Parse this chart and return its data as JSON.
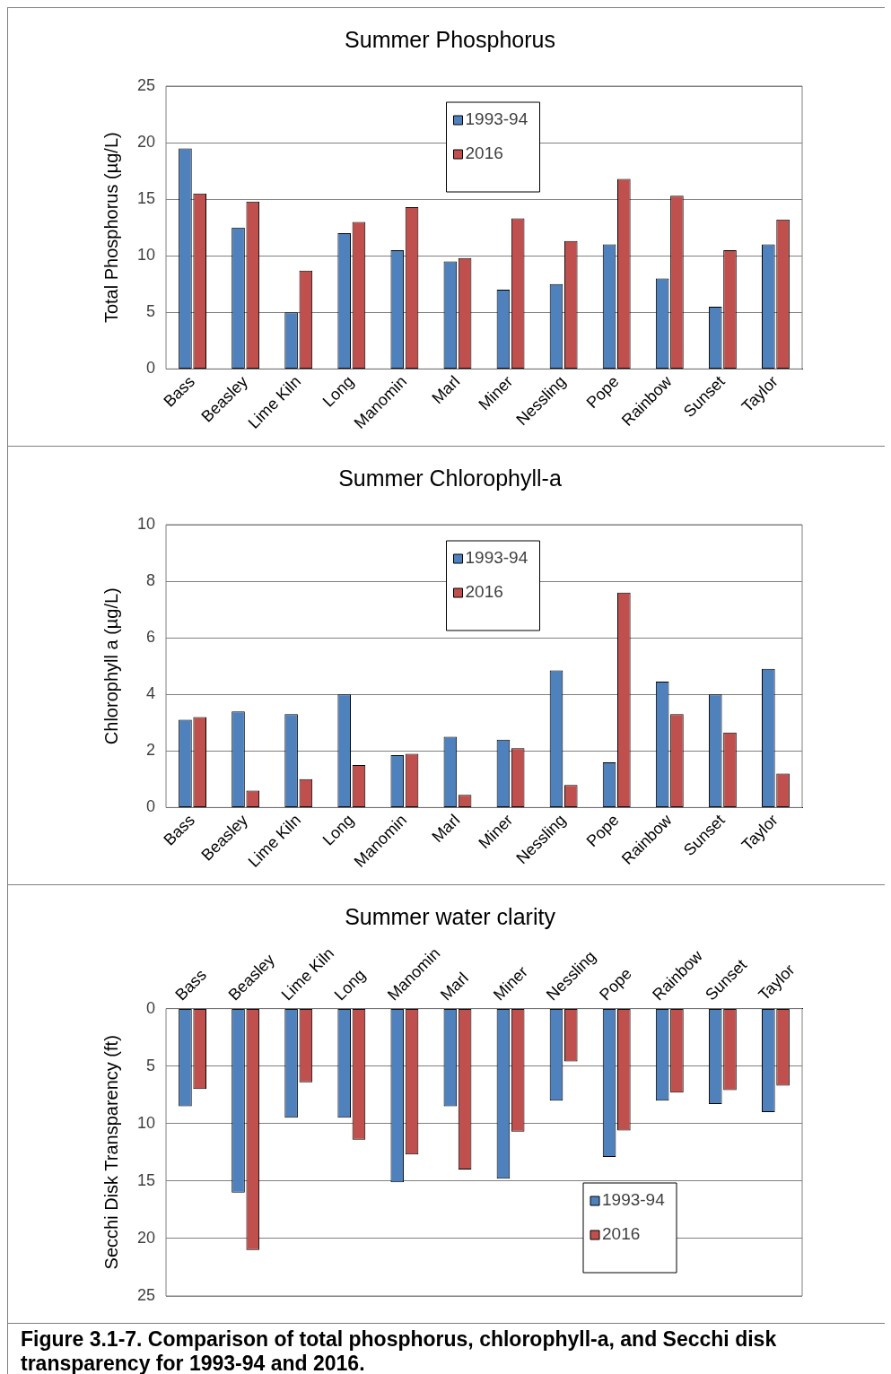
{
  "chart_data": [
    {
      "type": "bar",
      "title": "Summer Phosphorus",
      "ylabel": "Total Phosphorus (µg/L)",
      "categories": [
        "Bass",
        "Beasley",
        "Lime Kiln",
        "Long",
        "Manomin",
        "Marl",
        "Miner",
        "Nessling",
        "Pope",
        "Rainbow",
        "Sunset",
        "Taylor"
      ],
      "series": [
        {
          "name": "1993-94",
          "color": "#4f81bd",
          "values": [
            19.5,
            12.5,
            5,
            12,
            10.5,
            9.5,
            7,
            7.5,
            11,
            8,
            5.5,
            11
          ]
        },
        {
          "name": "2016",
          "color": "#c0504d",
          "values": [
            15.5,
            14.8,
            8.7,
            13,
            14.3,
            9.8,
            13.3,
            11.3,
            16.8,
            15.3,
            10.5,
            13.2
          ]
        }
      ],
      "ylim": [
        0,
        25
      ],
      "yticks": [
        0,
        5,
        10,
        15,
        20,
        25
      ],
      "grid": "y",
      "legend": "top"
    },
    {
      "type": "bar",
      "title": "Summer Chlorophyll-a",
      "ylabel": "Chlorophyll a (µg/L)",
      "categories": [
        "Bass",
        "Beasley",
        "Lime Kiln",
        "Long",
        "Manomin",
        "Marl",
        "Miner",
        "Nessling",
        "Pope",
        "Rainbow",
        "Sunset",
        "Taylor"
      ],
      "series": [
        {
          "name": "1993-94",
          "color": "#4f81bd",
          "values": [
            3.1,
            3.4,
            3.3,
            4.0,
            1.85,
            2.5,
            2.4,
            4.85,
            1.6,
            4.45,
            4.0,
            4.9
          ]
        },
        {
          "name": "2016",
          "color": "#c0504d",
          "values": [
            3.2,
            0.6,
            1.0,
            1.5,
            1.9,
            0.45,
            2.1,
            0.8,
            7.6,
            3.3,
            2.65,
            1.2
          ]
        }
      ],
      "ylim": [
        0,
        10
      ],
      "yticks": [
        0,
        2,
        4,
        6,
        8,
        10
      ],
      "grid": "y",
      "legend": "top"
    },
    {
      "type": "bar",
      "title": "Summer water clarity",
      "ylabel": "Secchi Disk Transparency (ft)",
      "categories": [
        "Bass",
        "Beasley",
        "Lime Kiln",
        "Long",
        "Manomin",
        "Marl",
        "Miner",
        "Nessling",
        "Pope",
        "Rainbow",
        "Sunset",
        "Taylor"
      ],
      "series": [
        {
          "name": "1993-94",
          "color": "#4f81bd",
          "values": [
            8.5,
            16,
            9.5,
            9.5,
            15.1,
            8.5,
            14.8,
            8,
            12.9,
            8,
            8.3,
            9
          ]
        },
        {
          "name": "2016",
          "color": "#c0504d",
          "values": [
            7,
            21,
            6.4,
            11.4,
            12.7,
            14,
            10.7,
            4.6,
            10.6,
            7.3,
            7.1,
            6.7
          ]
        }
      ],
      "ylim": [
        25,
        0
      ],
      "yticks": [
        0,
        5,
        10,
        15,
        20,
        25
      ],
      "grid": "y",
      "legend": "bottom right",
      "annotations": [
        "Figure 3.1-7.  Comparison of total phosphorus, chlorophyll-a, and Secchi disk transparency for 1993-94 and 2016."
      ]
    }
  ]
}
